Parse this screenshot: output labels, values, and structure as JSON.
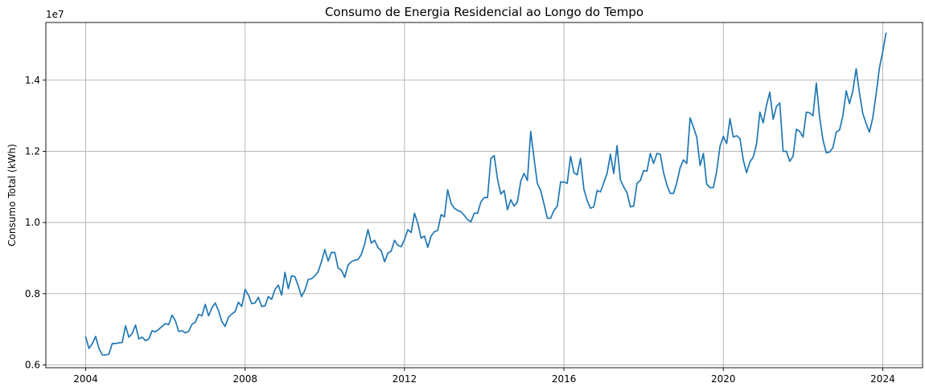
{
  "chart_data": {
    "type": "line",
    "title": "Consumo de Energia Residencial ao Longo do Tempo",
    "xlabel": "",
    "ylabel": "Consumo Total (kWh)",
    "y_offset_label": "1e7",
    "grid": true,
    "xlim": [
      2003.0,
      2025.0
    ],
    "ylim": [
      0.592,
      1.562
    ],
    "x_ticks": [
      2004,
      2008,
      2012,
      2016,
      2020,
      2024
    ],
    "x_tick_labels": [
      "2004",
      "2008",
      "2012",
      "2016",
      "2020",
      "2024"
    ],
    "y_ticks": [
      0.6,
      0.8,
      1.0,
      1.2,
      1.4
    ],
    "y_tick_labels": [
      "0.6",
      "0.8",
      "1.0",
      "1.2",
      "1.4"
    ],
    "series": [
      {
        "color": "#1f77b4",
        "start_year": 2004,
        "start_month": 1,
        "frequency": "monthly",
        "values": [
          0.678,
          0.646,
          0.66,
          0.68,
          0.646,
          0.628,
          0.628,
          0.63,
          0.66,
          0.66,
          0.662,
          0.663,
          0.71,
          0.678,
          0.688,
          0.712,
          0.673,
          0.678,
          0.668,
          0.673,
          0.696,
          0.693,
          0.7,
          0.708,
          0.716,
          0.713,
          0.74,
          0.724,
          0.694,
          0.696,
          0.69,
          0.694,
          0.714,
          0.72,
          0.742,
          0.738,
          0.77,
          0.738,
          0.76,
          0.774,
          0.752,
          0.722,
          0.708,
          0.734,
          0.743,
          0.75,
          0.776,
          0.764,
          0.812,
          0.796,
          0.772,
          0.774,
          0.79,
          0.764,
          0.766,
          0.792,
          0.784,
          0.812,
          0.824,
          0.796,
          0.86,
          0.814,
          0.85,
          0.848,
          0.822,
          0.792,
          0.81,
          0.84,
          0.842,
          0.85,
          0.862,
          0.89,
          0.924,
          0.892,
          0.916,
          0.916,
          0.872,
          0.866,
          0.846,
          0.88,
          0.89,
          0.894,
          0.896,
          0.91,
          0.94,
          0.98,
          0.942,
          0.95,
          0.93,
          0.92,
          0.89,
          0.914,
          0.92,
          0.95,
          0.936,
          0.932,
          0.952,
          0.98,
          0.972,
          1.026,
          0.998,
          0.956,
          0.962,
          0.93,
          0.962,
          0.974,
          0.978,
          1.022,
          1.016,
          1.092,
          1.054,
          1.04,
          1.034,
          1.03,
          1.02,
          1.008,
          1.002,
          1.026,
          1.026,
          1.058,
          1.07,
          1.07,
          1.18,
          1.188,
          1.122,
          1.08,
          1.09,
          1.036,
          1.064,
          1.046,
          1.058,
          1.116,
          1.138,
          1.118,
          1.256,
          1.18,
          1.11,
          1.09,
          1.052,
          1.012,
          1.012,
          1.034,
          1.046,
          1.114,
          1.114,
          1.11,
          1.186,
          1.14,
          1.134,
          1.18,
          1.094,
          1.062,
          1.04,
          1.044,
          1.09,
          1.086,
          1.112,
          1.138,
          1.192,
          1.138,
          1.216,
          1.12,
          1.1,
          1.084,
          1.044,
          1.046,
          1.11,
          1.118,
          1.146,
          1.144,
          1.194,
          1.166,
          1.194,
          1.192,
          1.14,
          1.106,
          1.082,
          1.082,
          1.112,
          1.154,
          1.176,
          1.166,
          1.294,
          1.268,
          1.24,
          1.16,
          1.194,
          1.108,
          1.098,
          1.098,
          1.144,
          1.214,
          1.242,
          1.222,
          1.292,
          1.24,
          1.244,
          1.236,
          1.176,
          1.14,
          1.17,
          1.184,
          1.22,
          1.31,
          1.28,
          1.33,
          1.366,
          1.29,
          1.326,
          1.336,
          1.2,
          1.2,
          1.172,
          1.186,
          1.262,
          1.256,
          1.24,
          1.31,
          1.308,
          1.3,
          1.392,
          1.296,
          1.232,
          1.196,
          1.198,
          1.21,
          1.254,
          1.26,
          1.3,
          1.37,
          1.334,
          1.37,
          1.432,
          1.364,
          1.306,
          1.278,
          1.254,
          1.294,
          1.36,
          1.434,
          1.48,
          1.532
        ]
      }
    ]
  }
}
